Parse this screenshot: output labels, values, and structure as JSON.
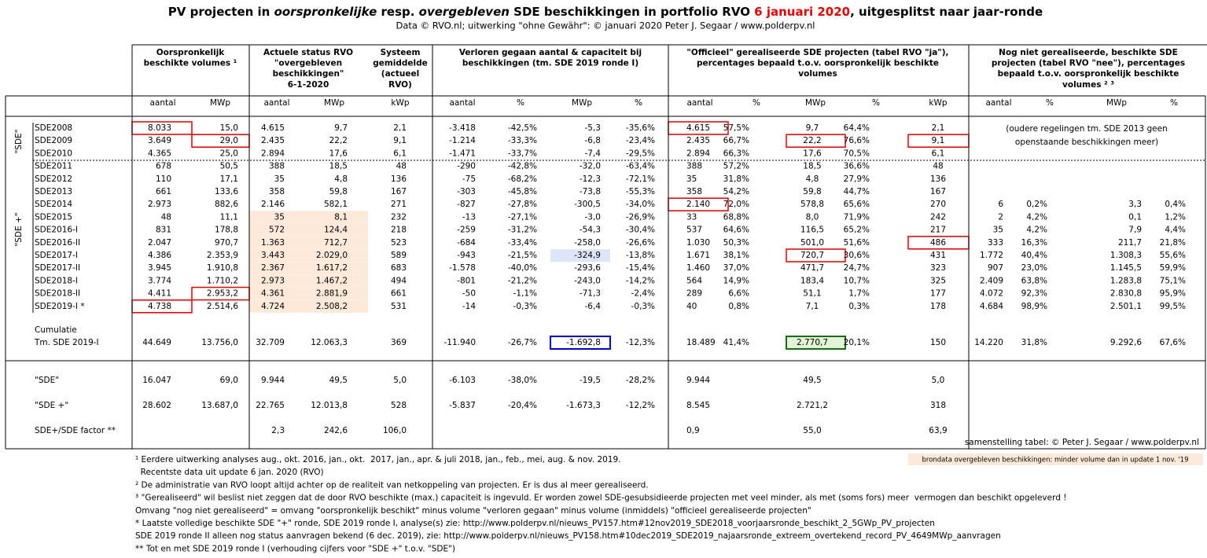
{
  "header": {
    "title_parts": [
      {
        "text": "PV projecten in ",
        "style": "bold"
      },
      {
        "text": "oorspronkelijke",
        "style": "bold-italic"
      },
      {
        "text": " resp. ",
        "style": "bold"
      },
      {
        "text": "overgebleven",
        "style": "bold-italic"
      },
      {
        "text": " SDE beschikkingen in portfolio RVO ",
        "style": "bold"
      },
      {
        "text": "6 januari 2020",
        "style": "bold-red"
      },
      {
        "text": ", uitgesplitst naar jaar-ronde",
        "style": "bold"
      }
    ],
    "subtitle": "Data © RVO.nl; uitwerking \"ohne Gewähr\": © januari 2020 Peter J. Segaar / www.polderpv.nl"
  },
  "table": {
    "groups": [
      {
        "lines": [
          "Oorspronkelijk",
          "beschikte volumes ¹"
        ],
        "color": "#000000"
      },
      {
        "lines": [
          "Actuele status RVO",
          "\"overgebleven",
          "beschikkingen\"",
          "6-1-2020"
        ],
        "color": "#e00000"
      },
      {
        "lines": [
          "Systeem",
          "gemiddelde",
          "(actueel",
          "RVO)"
        ],
        "color": "#e00000"
      },
      {
        "lines": [
          "Verloren gegaan aantal & capaciteit bij",
          "beschikkingen (tm. SDE 2019 ronde I)"
        ],
        "color": "#0000c0"
      },
      {
        "lines": [
          "\"Officieel\" gerealiseerde SDE projecten (tabel RVO \"ja\"),",
          "percentages bepaald t.o.v. oorspronkelijk beschikte",
          "volumes"
        ],
        "color": "#00a650"
      },
      {
        "lines": [
          "Nog niet gerealiseerde, beschikte SDE",
          "projecten (tabel RVO \"nee\"), percentages",
          "bepaald t.o.v. oorspronkelijk beschikte",
          "volumes ² ³"
        ],
        "color": "#000000"
      }
    ],
    "columns": [
      "aantal",
      "MWp",
      "aantal",
      "MWp",
      "kWp",
      "aantal",
      "%",
      "MWp",
      "%",
      "aantal",
      "%",
      "MWp",
      "%",
      "kWp",
      "aantal",
      "%",
      "MWp",
      "%"
    ],
    "group_labels": [
      "\"SDE\"",
      "\"SDE +\""
    ],
    "rows": [
      {
        "label": "SDE2008",
        "cells": [
          "8.033",
          "15,0",
          "4.615",
          "9,7",
          "2,1",
          "-3.418",
          "-42,5%",
          "-5,3",
          "-35,6%",
          "4.615",
          "57,5%",
          "9,7",
          "64,4%",
          "2,1",
          null,
          null,
          null,
          null
        ]
      },
      {
        "label": "SDE2009",
        "cells": [
          "3.649",
          "29,0",
          "2.435",
          "22,2",
          "9,1",
          "-1.214",
          "-33,3%",
          "-6,8",
          "-23,4%",
          "2.435",
          "66,7%",
          "22,2",
          "76,6%",
          "9,1",
          null,
          null,
          null,
          null
        ]
      },
      {
        "label": "SDE2010",
        "cells": [
          "4.365",
          "25,0",
          "2.894",
          "17,6",
          "6,1",
          "-1.471",
          "-33,7%",
          "-7,4",
          "-29,5%",
          "2.894",
          "66,3%",
          "17,6",
          "70,5%",
          "6,1",
          null,
          null,
          null,
          null
        ]
      },
      {
        "label": "SDE2011",
        "cells": [
          "678",
          "50,5",
          "388",
          "18,5",
          "48",
          "-290",
          "-42,8%",
          "-32,0",
          "-63,4%",
          "388",
          "57,2%",
          "18,5",
          "36,6%",
          "48",
          null,
          null,
          null,
          null
        ]
      },
      {
        "label": "SDE2012",
        "cells": [
          "110",
          "17,1",
          "35",
          "4,8",
          "136",
          "-75",
          "-68,2%",
          "-12,3",
          "-72,1%",
          "35",
          "31,8%",
          "4,8",
          "27,9%",
          "136",
          null,
          null,
          null,
          null
        ]
      },
      {
        "label": "SDE2013",
        "cells": [
          "661",
          "133,6",
          "358",
          "59,8",
          "167",
          "-303",
          "-45,8%",
          "-73,8",
          "-55,3%",
          "358",
          "54,2%",
          "59,8",
          "44,7%",
          "167",
          null,
          null,
          null,
          null
        ]
      },
      {
        "label": "SDE2014",
        "cells": [
          "2.973",
          "882,6",
          "2.146",
          "582,1",
          "271",
          "-827",
          "-27,8%",
          "-300,5",
          "-34,0%",
          "2.140",
          "72,0%",
          "578,8",
          "65,6%",
          "270",
          "6",
          "0,2%",
          "3,3",
          "0,4%"
        ]
      },
      {
        "label": "SDE2015",
        "cells": [
          "48",
          "11,1",
          "35",
          "8,1",
          "232",
          "-13",
          "-27,1%",
          "-3,0",
          "-26,9%",
          "33",
          "68,8%",
          "8,0",
          "71,9%",
          "242",
          "2",
          "4,2%",
          "0,1",
          "1,2%"
        ]
      },
      {
        "label": "SDE2016-I",
        "cells": [
          "831",
          "178,8",
          "572",
          "124,4",
          "218",
          "-259",
          "-31,2%",
          "-54,3",
          "-30,4%",
          "537",
          "64,6%",
          "116,5",
          "65,2%",
          "217",
          "35",
          "4,2%",
          "7,9",
          "4,4%"
        ]
      },
      {
        "label": "SDE2016-II",
        "cells": [
          "2.047",
          "970,7",
          "1.363",
          "712,7",
          "523",
          "-684",
          "-33,4%",
          "-258,0",
          "-26,6%",
          "1.030",
          "50,3%",
          "501,0",
          "51,6%",
          "486",
          "333",
          "16,3%",
          "211,7",
          "21,8%"
        ]
      },
      {
        "label": "SDE2017-I",
        "cells": [
          "4.386",
          "2.353,9",
          "3.443",
          "2.029,0",
          "589",
          "-943",
          "-21,5%",
          "-324,9",
          "-13,8%",
          "1.671",
          "38,1%",
          "720,7",
          "30,6%",
          "431",
          "1.772",
          "40,4%",
          "1.308,3",
          "55,6%"
        ]
      },
      {
        "label": "SDE2017-II",
        "cells": [
          "3.945",
          "1.910,8",
          "2.367",
          "1.617,2",
          "683",
          "-1.578",
          "-40,0%",
          "-293,6",
          "-15,4%",
          "1.460",
          "37,0%",
          "471,7",
          "24,7%",
          "323",
          "907",
          "23,0%",
          "1.145,5",
          "59,9%"
        ]
      },
      {
        "label": "SDE2018-I",
        "cells": [
          "3.774",
          "1.710,2",
          "2.973",
          "1.467,2",
          "494",
          "-801",
          "-21,2%",
          "-243,0",
          "-14,2%",
          "564",
          "14,9%",
          "183,4",
          "10,7%",
          "325",
          "2.409",
          "63,8%",
          "1.283,8",
          "75,1%"
        ]
      },
      {
        "label": "SDE2018-II",
        "cells": [
          "4.411",
          "2.953,2",
          "4.361",
          "2.881,9",
          "661",
          "-50",
          "-1,1%",
          "-71,3",
          "-2,4%",
          "289",
          "6,6%",
          "51,1",
          "1,7%",
          "177",
          "4.072",
          "92,3%",
          "2.830,8",
          "95,9%"
        ]
      },
      {
        "label": "SDE2019-I *",
        "cells": [
          "4.738",
          "2.514,6",
          "4.724",
          "2.508,2",
          "531",
          "-14",
          "-0,3%",
          "-6,4",
          "-0,3%",
          "40",
          "0,8%",
          "7,1",
          "0,3%",
          "178",
          "4.684",
          "98,9%",
          "2.501,1",
          "99,5%"
        ]
      }
    ],
    "cumulative": {
      "label": [
        "Cumulatie",
        "Tm. SDE 2019-I"
      ],
      "cells": [
        "44.649",
        "13.756,0",
        "32.709",
        "12.063,3",
        "369",
        "-11.940",
        "-26,7%",
        "-1.692,8",
        "-12,3%",
        "18.489",
        "41,4%",
        "2.770,7",
        "20,1%",
        "150",
        "14.220",
        "31,8%",
        "9.292,6",
        "67,6%"
      ]
    },
    "summary": [
      {
        "label": "\"SDE\"",
        "cells": [
          "16.047",
          "69,0",
          "9.944",
          "49,5",
          "5,0",
          "-6.103",
          "-38,0%",
          "-19,5",
          "-28,2%",
          "9.944",
          null,
          "49,5",
          null,
          "5,0",
          null,
          null,
          null,
          null
        ]
      },
      {
        "label": "\"SDE +\"",
        "cells": [
          "28.602",
          "13.687,0",
          "22.765",
          "12.013,8",
          "528",
          "-5.837",
          "-20,4%",
          "-1.673,3",
          "-12,2%",
          "8.545",
          null,
          "2.721,2",
          null,
          "318",
          null,
          null,
          null,
          null
        ]
      },
      {
        "label": "SDE+/SDE factor **",
        "cells": [
          null,
          null,
          "2,3",
          "242,6",
          "106,0",
          null,
          null,
          null,
          null,
          "0,9",
          null,
          "55,0",
          null,
          "63,9",
          null,
          null,
          null,
          null
        ]
      }
    ],
    "note": [
      "(oudere regelingen tm. SDE 2013 geen",
      "openstaande beschikkingen meer)"
    ],
    "credit": "samenstelling tabel: © Peter J. Segaar / www.polderpv.nl"
  },
  "footnotes": [
    "¹ Eerdere uitwerking analyses aug., okt. 2016, jan., okt.  2017, jan., apr. & juli 2018, jan., feb., mei, aug. & nov. 2019.",
    "  Recentste data uit update 6 jan. 2020 (RVO)",
    "² De administratie van RVO loopt altijd achter op de realiteit van netkoppeling van projecten. Er is dus al meer gerealiseerd.",
    "³ \"Gerealiseerd\" wil beslist niet zeggen dat de door RVO beschikte (max.) capaciteit is ingevuld. Er worden zowel SDE-gesubsidieerde projecten met veel minder, als met (soms fors) meer  vermogen dan beschikt opgeleverd !",
    "Omvang \"nog niet gerealiseerd\" = omvang \"oorspronkelijk beschikt\" minus volume \"verloren gegaan\" minus volume (inmiddels) \"officieel gerealiseerde projecten\"",
    "* Laatste volledige beschikte SDE \"+\" ronde, SDE 2019 ronde I, analyse(s) zie: http://www.polderpv.nl/nieuws_PV157.htm#12nov2019_SDE2018_voorjaarsronde_beschikt_2_5GWp_PV_projecten",
    "SDE 2019 ronde II alleen nog status aanvragen bekend (6 dec. 2019), zie: http://www.polderpv.nl/nieuws_PV158.htm#10dec2019_SDE2019_najaarsronde_extreem_overtekend_record_PV_4649MWp_aanvragen",
    "** Tot en met SDE 2019 ronde I (verhouding cijfers voor \"SDE +\" t.o.v. \"SDE\")"
  ],
  "source_note": "brondata overgebleven beschikkingen: minder volume dan in update 1 nov. '19"
}
